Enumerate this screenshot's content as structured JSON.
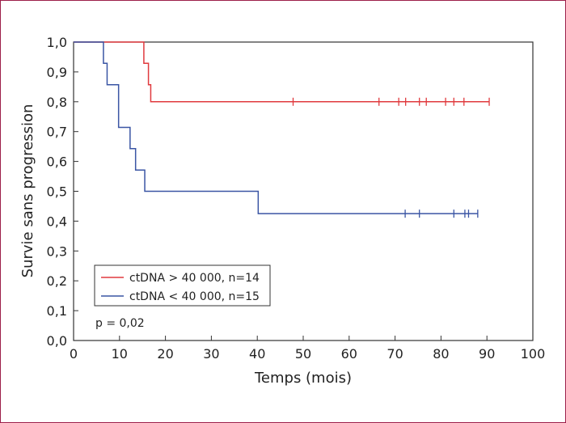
{
  "chart_data": {
    "type": "line",
    "subtype": "kaplan-meier",
    "xlabel": "Temps (mois)",
    "ylabel": "Survie sans progression",
    "xlim": [
      0,
      100
    ],
    "ylim": [
      0,
      1
    ],
    "x_ticks": [
      "0",
      "10",
      "20",
      "30",
      "40",
      "50",
      "60",
      "70",
      "80",
      "90",
      "100"
    ],
    "y_ticks": [
      "0,0",
      "0,1",
      "0,2",
      "0,3",
      "0,4",
      "0,5",
      "0,6",
      "0,7",
      "0,8",
      "0,9",
      "1,0"
    ],
    "grid": false,
    "legend_position": "bottom-left",
    "annotation": "p = 0,02",
    "series": [
      {
        "name": "ctDNA > 40 000, n=14",
        "color": "#e03a3e",
        "steps": [
          [
            0,
            1.0
          ],
          [
            15.3,
            0.929
          ],
          [
            16.3,
            0.857
          ],
          [
            16.8,
            0.8
          ],
          [
            90.5,
            0.8
          ]
        ],
        "censored": [
          47.8,
          66.5,
          70.8,
          72.3,
          75.3,
          76.8,
          81.0,
          82.8,
          85.0,
          90.5
        ]
      },
      {
        "name": "ctDNA < 40 000, n=15",
        "color": "#3a55a4",
        "steps": [
          [
            0,
            1.0
          ],
          [
            6.5,
            0.929
          ],
          [
            7.3,
            0.857
          ],
          [
            9.8,
            0.714
          ],
          [
            12.3,
            0.643
          ],
          [
            13.5,
            0.571
          ],
          [
            15.5,
            0.5
          ],
          [
            40.2,
            0.425
          ],
          [
            88.0,
            0.425
          ]
        ],
        "censored": [
          72.2,
          75.3,
          82.8,
          85.2,
          86.0,
          88.0
        ]
      }
    ]
  }
}
